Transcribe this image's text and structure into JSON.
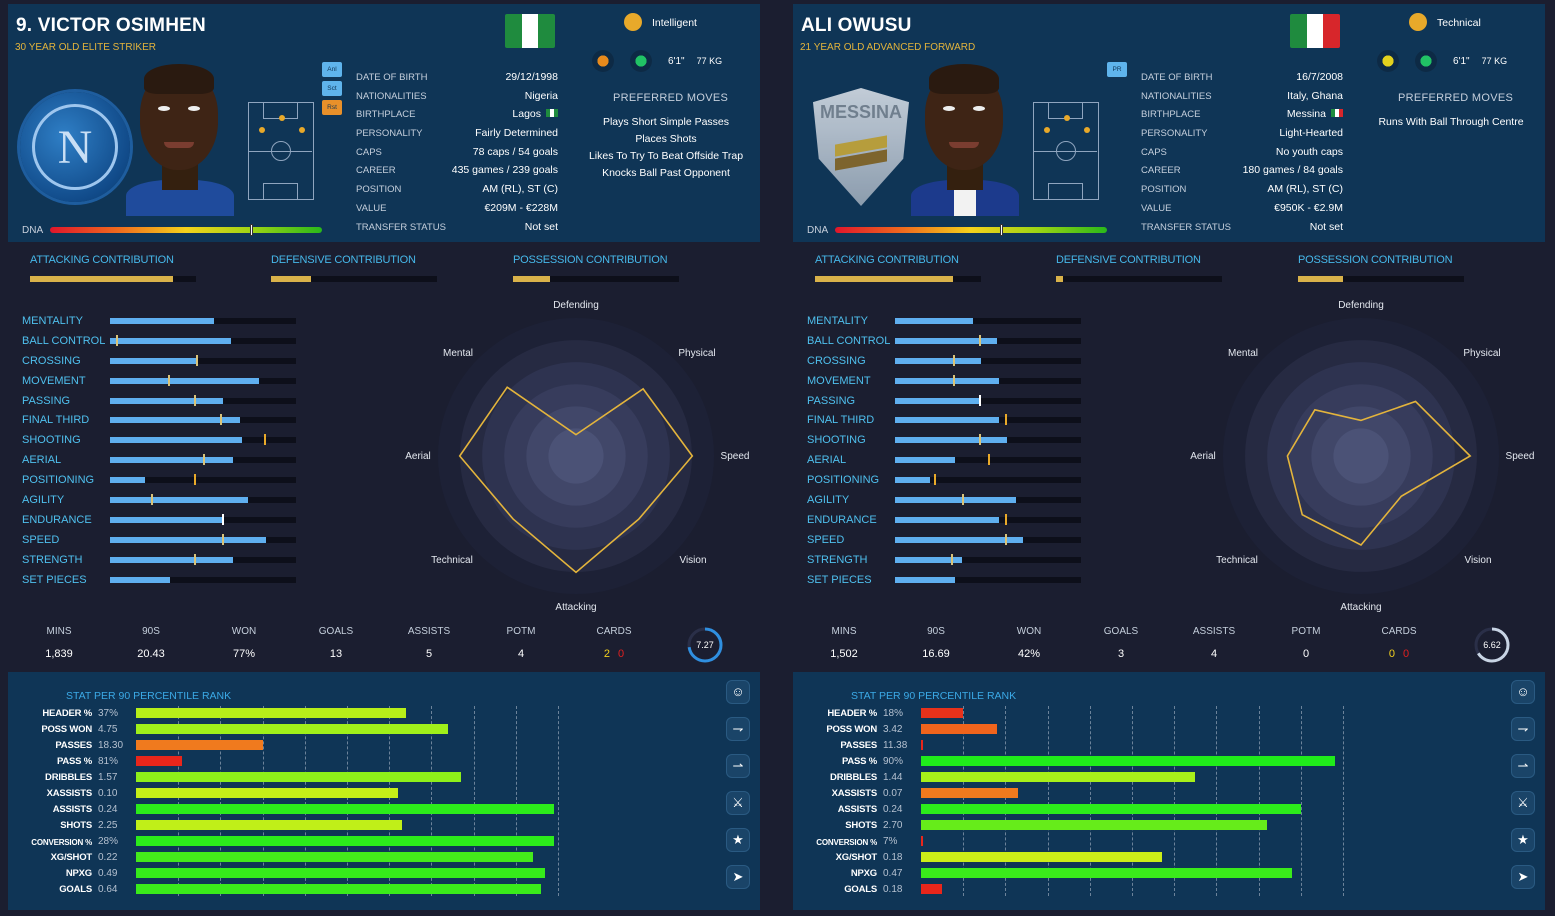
{
  "players": [
    {
      "title": "9. VICTOR OSIMHEN",
      "subtitle": "30 YEAR OLD ELITE STRIKER",
      "flag_colors": [
        "#1f8b3e",
        "#ffffff",
        "#1f8b3e"
      ],
      "club_icon": "napoli-crest",
      "club_letter": "N",
      "roles": [
        {
          "label": "Anl",
          "color": "#5fb4ec"
        },
        {
          "label": "Sct",
          "color": "#5fb4ec"
        },
        {
          "label": "Rst",
          "color": "#e8902a"
        }
      ],
      "info": [
        {
          "key": "DATE OF BIRTH",
          "value": "29/12/1998"
        },
        {
          "key": "NATIONALITIES",
          "value": "Nigeria"
        },
        {
          "key": "BIRTHPLACE",
          "value": "Lagos",
          "flag": [
            "#1f8b3e",
            "#ffffff",
            "#1f8b3e"
          ]
        },
        {
          "key": "PERSONALITY",
          "value": "Fairly Determined"
        },
        {
          "key": "CAPS",
          "value": "78 caps / 54 goals"
        },
        {
          "key": "CAREER",
          "value": "435 games / 239  goals"
        },
        {
          "key": "POSITION",
          "value": "AM (RL), ST (C)"
        },
        {
          "key": "VALUE",
          "value": "€209M - €228M"
        },
        {
          "key": "TRANSFER STATUS",
          "value": "Not set"
        }
      ],
      "dna_label": "DNA",
      "dna_marker": 0.74,
      "trait_icon": "brain-icon",
      "trait": "Intelligent",
      "height": "6'1\"",
      "weight": "77 KG",
      "boot_colors": [
        "o",
        "g"
      ],
      "preferred_moves_label": "PREFERRED MOVES",
      "preferred_moves": [
        "Plays Short Simple Passes",
        "Places Shots",
        "Likes To Try To Beat Offside Trap",
        "Knocks Ball Past Opponent"
      ],
      "contrib": [
        {
          "label": "ATTACKING CONTRIBUTION",
          "value": 0.86
        },
        {
          "label": "DEFENSIVE CONTRIBUTION",
          "value": 0.24
        },
        {
          "label": "POSSESSION CONTRIBUTION",
          "value": 0.22
        }
      ],
      "attributes": [
        {
          "name": "MENTALITY",
          "value": 0.56,
          "tick": null
        },
        {
          "name": "BALL CONTROL",
          "value": 0.65,
          "tick": 0.03
        },
        {
          "name": "CROSSING",
          "value": 0.47,
          "tick": 0.46
        },
        {
          "name": "MOVEMENT",
          "value": 0.8,
          "tick": 0.31
        },
        {
          "name": "PASSING",
          "value": 0.61,
          "tick": 0.45
        },
        {
          "name": "FINAL THIRD",
          "value": 0.7,
          "tick": 0.59
        },
        {
          "name": "SHOOTING",
          "value": 0.71,
          "tick": 0.83,
          "tick_color": "#e8a92a"
        },
        {
          "name": "AERIAL",
          "value": 0.66,
          "tick": 0.5
        },
        {
          "name": "POSITIONING",
          "value": 0.19,
          "tick": 0.45,
          "tick_color": "#e8a92a"
        },
        {
          "name": "AGILITY",
          "value": 0.74,
          "tick": 0.22
        },
        {
          "name": "ENDURANCE",
          "value": 0.6,
          "tick": 0.6,
          "tick_color": "#ffffff"
        },
        {
          "name": "SPEED",
          "value": 0.84,
          "tick": 0.6
        },
        {
          "name": "STRENGTH",
          "value": 0.66,
          "tick": 0.45
        },
        {
          "name": "SET PIECES",
          "value": 0.32,
          "tick": null
        }
      ],
      "radar_axes": [
        "Defending",
        "Physical",
        "Speed",
        "Vision",
        "Attacking",
        "Technical",
        "Aerial",
        "Mental"
      ],
      "radar_values": [
        0.18,
        0.8,
        0.98,
        0.75,
        0.98,
        0.75,
        0.98,
        0.82
      ],
      "summary": [
        {
          "label": "MINS",
          "value": "1,839"
        },
        {
          "label": "90S",
          "value": "20.43"
        },
        {
          "label": "WON",
          "value": "77%"
        },
        {
          "label": "GOALS",
          "value": "13"
        },
        {
          "label": "ASSISTS",
          "value": "5"
        },
        {
          "label": "POTM",
          "value": "4"
        }
      ],
      "cards_label": "CARDS",
      "cards_yellow": "2",
      "cards_red": "0",
      "rating": "7.27",
      "rating_fill": 0.727,
      "stats_header": "STAT   PER 90  PERCENTILE RANK",
      "stats": [
        {
          "name": "HEADER %",
          "value": "37%",
          "pct": 0.64,
          "color": "#b7ef19"
        },
        {
          "name": "POSS WON",
          "value": "4.75",
          "pct": 0.74,
          "color": "#a0f01a"
        },
        {
          "name": "PASSES",
          "value": "18.30",
          "pct": 0.3,
          "color": "#f07a1e"
        },
        {
          "name": "PASS %",
          "value": "81%",
          "pct": 0.11,
          "color": "#e8261b"
        },
        {
          "name": "DRIBBLES",
          "value": "1.57",
          "pct": 0.77,
          "color": "#8ef01a"
        },
        {
          "name": "XASSISTS",
          "value": "0.10",
          "pct": 0.62,
          "color": "#c5ef18"
        },
        {
          "name": "ASSISTS",
          "value": "0.24",
          "pct": 0.99,
          "color": "#2cec1b"
        },
        {
          "name": "SHOTS",
          "value": "2.25",
          "pct": 0.63,
          "color": "#c0ef18"
        },
        {
          "name": "CONVERSION %",
          "value": "28%",
          "pct": 0.99,
          "color": "#2cec1b",
          "small": true
        },
        {
          "name": "XG/SHOT",
          "value": "0.22",
          "pct": 0.94,
          "color": "#44ea1b"
        },
        {
          "name": "NPXG",
          "value": "0.49",
          "pct": 0.97,
          "color": "#36eb1b"
        },
        {
          "name": "GOALS",
          "value": "0.64",
          "pct": 0.96,
          "color": "#3aeb1b"
        }
      ]
    },
    {
      "title": "ALI OWUSU",
      "subtitle": "21 YEAR OLD ADVANCED FORWARD",
      "flag_colors": [
        "#1f8b3e",
        "#ffffff",
        "#d7262b"
      ],
      "club_icon": "messina-crest",
      "club_letter": "MESSINA",
      "roles": [
        {
          "label": "PR",
          "color": "#5fb4ec"
        }
      ],
      "info": [
        {
          "key": "DATE OF BIRTH",
          "value": "16/7/2008"
        },
        {
          "key": "NATIONALITIES",
          "value": "Italy, Ghana"
        },
        {
          "key": "BIRTHPLACE",
          "value": "Messina",
          "flag": [
            "#1f8b3e",
            "#ffffff",
            "#d7262b"
          ]
        },
        {
          "key": "PERSONALITY",
          "value": "Light-Hearted"
        },
        {
          "key": "CAPS",
          "value": "No youth caps"
        },
        {
          "key": "CAREER",
          "value": "180 games /  84  goals"
        },
        {
          "key": "POSITION",
          "value": "AM (RL), ST (C)"
        },
        {
          "key": "VALUE",
          "value": "€950K - €2.9M"
        },
        {
          "key": "TRANSFER STATUS",
          "value": "Not set"
        }
      ],
      "dna_label": "DNA",
      "dna_marker": 0.61,
      "trait_icon": "boot-icon",
      "trait": "Technical",
      "height": "6'1\"",
      "weight": "77 KG",
      "boot_colors": [
        "y",
        "g"
      ],
      "preferred_moves_label": "PREFERRED MOVES",
      "preferred_moves": [
        "Runs With Ball Through Centre"
      ],
      "contrib": [
        {
          "label": "ATTACKING CONTRIBUTION",
          "value": 0.83
        },
        {
          "label": "DEFENSIVE CONTRIBUTION",
          "value": 0.04
        },
        {
          "label": "POSSESSION CONTRIBUTION",
          "value": 0.27
        }
      ],
      "attributes": [
        {
          "name": "MENTALITY",
          "value": 0.42,
          "tick": null
        },
        {
          "name": "BALL CONTROL",
          "value": 0.55,
          "tick": 0.45
        },
        {
          "name": "CROSSING",
          "value": 0.46,
          "tick": 0.31
        },
        {
          "name": "MOVEMENT",
          "value": 0.56,
          "tick": 0.31
        },
        {
          "name": "PASSING",
          "value": 0.46,
          "tick": 0.45,
          "tick_color": "#ffffff"
        },
        {
          "name": "FINAL THIRD",
          "value": 0.56,
          "tick": 0.59,
          "tick_color": "#e8a92a"
        },
        {
          "name": "SHOOTING",
          "value": 0.6,
          "tick": 0.45
        },
        {
          "name": "AERIAL",
          "value": 0.32,
          "tick": 0.5,
          "tick_color": "#e8a92a"
        },
        {
          "name": "POSITIONING",
          "value": 0.19,
          "tick": 0.21,
          "tick_color": "#e8a92a"
        },
        {
          "name": "AGILITY",
          "value": 0.65,
          "tick": 0.36
        },
        {
          "name": "ENDURANCE",
          "value": 0.56,
          "tick": 0.59,
          "tick_color": "#e8a92a"
        },
        {
          "name": "SPEED",
          "value": 0.69,
          "tick": 0.59
        },
        {
          "name": "STRENGTH",
          "value": 0.36,
          "tick": 0.3
        },
        {
          "name": "SET PIECES",
          "value": 0.32,
          "tick": null
        }
      ],
      "radar_axes": [
        "Defending",
        "Physical",
        "Speed",
        "Vision",
        "Attacking",
        "Technical",
        "Aerial",
        "Mental"
      ],
      "radar_values": [
        0.3,
        0.65,
        0.92,
        0.48,
        0.75,
        0.7,
        0.62,
        0.55
      ],
      "summary": [
        {
          "label": "MINS",
          "value": "1,502"
        },
        {
          "label": "90S",
          "value": "16.69"
        },
        {
          "label": "WON",
          "value": "42%"
        },
        {
          "label": "GOALS",
          "value": "3"
        },
        {
          "label": "ASSISTS",
          "value": "4"
        },
        {
          "label": "POTM",
          "value": "0"
        }
      ],
      "cards_label": "CARDS",
      "cards_yellow": "0",
      "cards_red": "0",
      "rating": "6.62",
      "rating_fill": 0.662,
      "stats_header": "STAT   PER 90  PERCENTILE RANK",
      "stats": [
        {
          "name": "HEADER %",
          "value": "18%",
          "pct": 0.1,
          "color": "#e8321b"
        },
        {
          "name": "POSS WON",
          "value": "3.42",
          "pct": 0.18,
          "color": "#f0641c"
        },
        {
          "name": "PASSES",
          "value": "11.38",
          "pct": 0.0,
          "color": "#e8261b"
        },
        {
          "name": "PASS %",
          "value": "90%",
          "pct": 0.98,
          "color": "#20ec1b"
        },
        {
          "name": "DRIBBLES",
          "value": "1.44",
          "pct": 0.65,
          "color": "#a8f01a"
        },
        {
          "name": "XASSISTS",
          "value": "0.07",
          "pct": 0.23,
          "color": "#f07a1e"
        },
        {
          "name": "ASSISTS",
          "value": "0.24",
          "pct": 0.9,
          "color": "#2cec1b"
        },
        {
          "name": "SHOTS",
          "value": "2.70",
          "pct": 0.82,
          "color": "#66ec1a"
        },
        {
          "name": "CONVERSION %",
          "value": "7%",
          "pct": 0.0,
          "color": "#e8261b",
          "small": true
        },
        {
          "name": "XG/SHOT",
          "value": "0.18",
          "pct": 0.57,
          "color": "#ccee18"
        },
        {
          "name": "NPXG",
          "value": "0.47",
          "pct": 0.88,
          "color": "#3aeb1b"
        },
        {
          "name": "GOALS",
          "value": "0.18",
          "pct": 0.05,
          "color": "#e8261b"
        }
      ]
    }
  ],
  "side_icons": [
    "player-profile-icon",
    "tackle-icon",
    "slide-icon",
    "runner-icon",
    "walker-icon",
    "sprinter-icon"
  ]
}
